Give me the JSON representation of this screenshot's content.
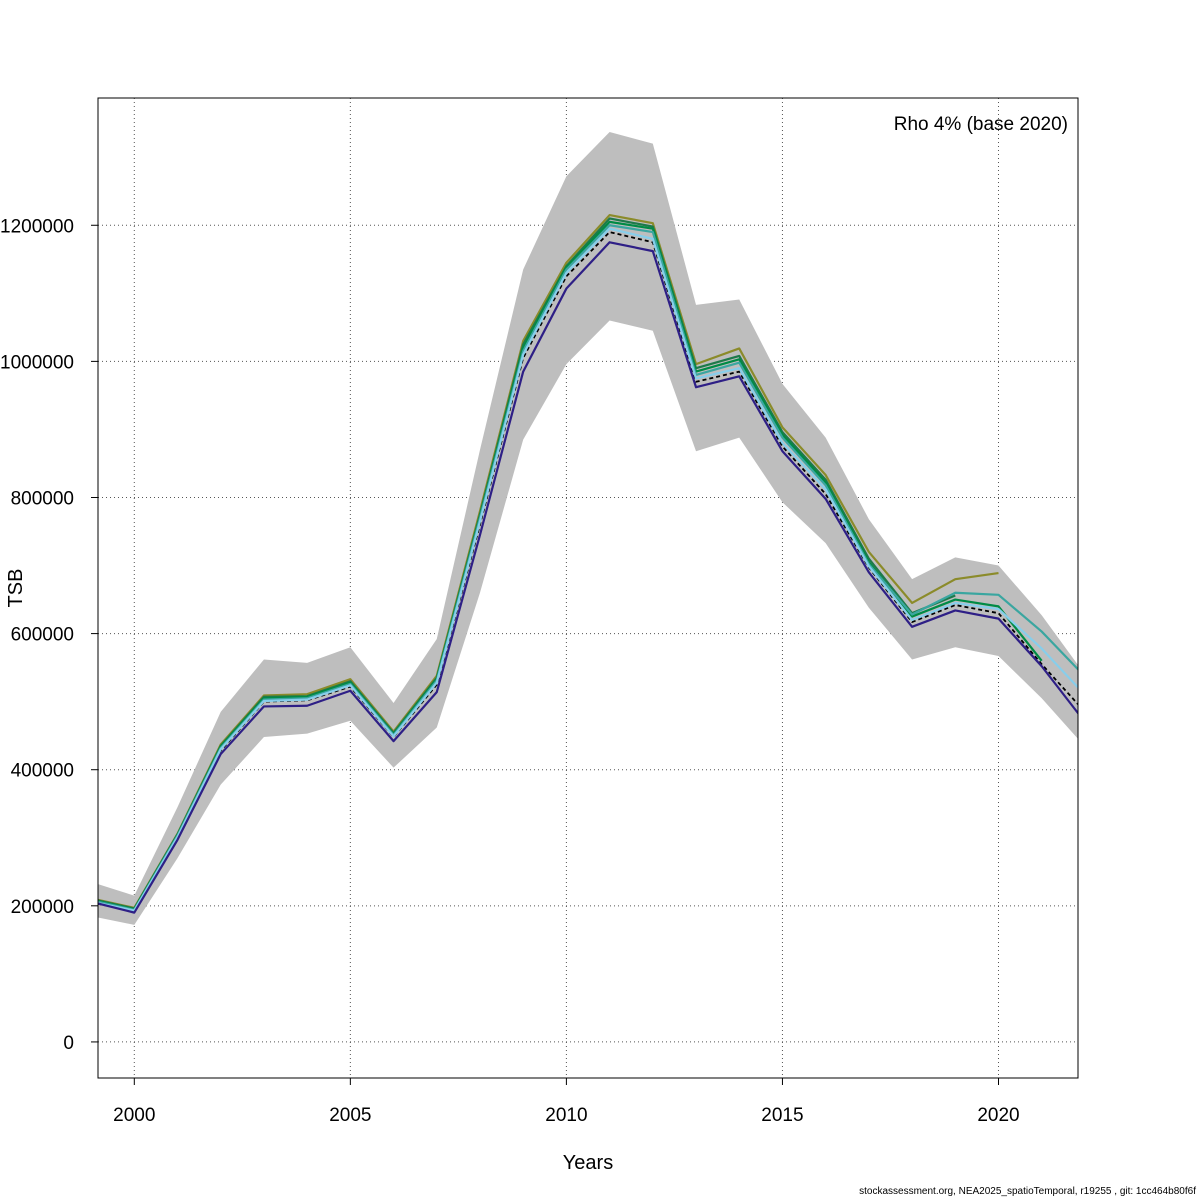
{
  "footer": "stockassessment.org, NEA2025_spatioTemporal, r19255 , git: 1cc464b80f6f",
  "chart_data": {
    "type": "line",
    "xlabel": "Years",
    "ylabel": "TSB",
    "annotation": "Rho 4% (base 2020)",
    "xlim": [
      1999.16,
      2021.84
    ],
    "ylim": [
      -53000,
      1387000
    ],
    "xticks": [
      2000,
      2005,
      2010,
      2015,
      2020
    ],
    "yticks": [
      0,
      200000,
      400000,
      600000,
      800000,
      1000000,
      1200000
    ],
    "ytick_labels": [
      "0",
      "200000",
      "400000",
      "600000",
      "800000",
      "1000000",
      "1200000"
    ],
    "grid": true,
    "confidence_band": {
      "color": "#bebebe",
      "x": [
        1999,
        2000,
        2001,
        2002,
        2003,
        2004,
        2005,
        2006,
        2007,
        2008,
        2009,
        2010,
        2011,
        2012,
        2013,
        2014,
        2015,
        2016,
        2017,
        2018,
        2019,
        2020,
        2021,
        2022
      ],
      "upper": [
        235000,
        215000,
        345000,
        485000,
        562000,
        557000,
        580000,
        498000,
        592000,
        870000,
        1135000,
        1272000,
        1337000,
        1320000,
        1083000,
        1091000,
        967000,
        888000,
        768000,
        680000,
        712000,
        700000,
        627000,
        540000
      ],
      "lower": [
        185000,
        172000,
        270000,
        378000,
        448000,
        453000,
        472000,
        403000,
        462000,
        660000,
        885000,
        996000,
        1060000,
        1045000,
        868000,
        888000,
        793000,
        733000,
        638000,
        562000,
        580000,
        567000,
        505000,
        434000
      ]
    },
    "series": [
      {
        "color": "#000000",
        "dashed": true,
        "x": [
          1999,
          2000,
          2001,
          2002,
          2003,
          2004,
          2005,
          2006,
          2007,
          2008,
          2009,
          2010,
          2011,
          2012,
          2013,
          2014,
          2015,
          2016,
          2017,
          2018,
          2019,
          2020,
          2021,
          2022
        ],
        "values": [
          205000,
          192000,
          300000,
          428000,
          500000,
          502000,
          522000,
          448000,
          525000,
          760000,
          1005000,
          1125000,
          1190000,
          1175000,
          970000,
          985000,
          875000,
          805000,
          697000,
          617000,
          642000,
          630000,
          555000,
          485000
        ]
      },
      {
        "color": "#8b8b2a",
        "dashed": false,
        "x": [
          1999,
          2000,
          2001,
          2002,
          2003,
          2004,
          2005,
          2006,
          2007,
          2008,
          2009,
          2010,
          2011,
          2012,
          2013,
          2014,
          2015,
          2016,
          2017,
          2018,
          2019,
          2020
        ],
        "values": [
          211000,
          197000,
          306000,
          437000,
          509000,
          511000,
          533000,
          456000,
          538000,
          780000,
          1030000,
          1145000,
          1215000,
          1203000,
          996000,
          1019000,
          903000,
          833000,
          720000,
          645000,
          680000,
          689000
        ]
      },
      {
        "color": "#1e7a4a",
        "dashed": false,
        "x": [
          1999,
          2000,
          2001,
          2002,
          2003,
          2004,
          2005,
          2006,
          2007,
          2008,
          2009,
          2010,
          2011,
          2012,
          2013,
          2014,
          2015,
          2016,
          2017,
          2018,
          2019
        ],
        "values": [
          210000,
          196000,
          305000,
          435000,
          507000,
          508000,
          530000,
          454000,
          535000,
          775000,
          1025000,
          1140000,
          1210000,
          1198000,
          990000,
          1008000,
          896000,
          826000,
          710000,
          630000,
          656000
        ]
      },
      {
        "color": "#008b45",
        "dashed": false,
        "x": [
          1999,
          2000,
          2001,
          2002,
          2003,
          2004,
          2005,
          2006,
          2007,
          2008,
          2009,
          2010,
          2011,
          2012,
          2013,
          2014,
          2015,
          2016,
          2017,
          2018,
          2019,
          2020,
          2021
        ],
        "values": [
          209000,
          195000,
          304000,
          434000,
          505000,
          507000,
          528000,
          452000,
          533000,
          772000,
          1020000,
          1138000,
          1205000,
          1195000,
          985000,
          1003000,
          892000,
          822000,
          705000,
          625000,
          650000,
          640000,
          560000
        ]
      },
      {
        "color": "#3aa6a0",
        "dashed": false,
        "x": [
          1999,
          2000,
          2001,
          2002,
          2003,
          2004,
          2005,
          2006,
          2007,
          2008,
          2009,
          2010,
          2011,
          2012,
          2013,
          2014,
          2015,
          2016,
          2017,
          2018,
          2019,
          2020,
          2021,
          2022
        ],
        "values": [
          208000,
          194000,
          303000,
          432000,
          503000,
          505000,
          526000,
          451000,
          531000,
          770000,
          1015000,
          1135000,
          1200000,
          1190000,
          980000,
          998000,
          888000,
          818000,
          702000,
          628000,
          660000,
          657000,
          603000,
          537000
        ]
      },
      {
        "color": "#87ceeb",
        "dashed": false,
        "x": [
          1999,
          2000,
          2001,
          2002,
          2003,
          2004,
          2005,
          2006,
          2007,
          2008,
          2009,
          2010,
          2011,
          2012,
          2013,
          2014,
          2015,
          2016,
          2017,
          2018,
          2019,
          2020,
          2021,
          2022
        ],
        "values": [
          206000,
          193000,
          301000,
          430000,
          501000,
          503000,
          524000,
          449000,
          528000,
          765000,
          1010000,
          1130000,
          1195000,
          1180000,
          975000,
          990000,
          880000,
          812000,
          699000,
          620000,
          645000,
          636000,
          578000,
          510000
        ]
      },
      {
        "color": "#2e1f86",
        "dashed": false,
        "x": [
          1999,
          2000,
          2001,
          2002,
          2003,
          2004,
          2005,
          2006,
          2007,
          2008,
          2009,
          2010,
          2011,
          2012,
          2013,
          2014,
          2015,
          2016,
          2017,
          2018,
          2019,
          2020,
          2021,
          2022
        ],
        "values": [
          206000,
          190000,
          297000,
          423000,
          493000,
          494000,
          516000,
          442000,
          514000,
          745000,
          985000,
          1107000,
          1175000,
          1162000,
          962000,
          978000,
          868000,
          798000,
          690000,
          610000,
          634000,
          622000,
          552000,
          470000
        ]
      }
    ]
  }
}
